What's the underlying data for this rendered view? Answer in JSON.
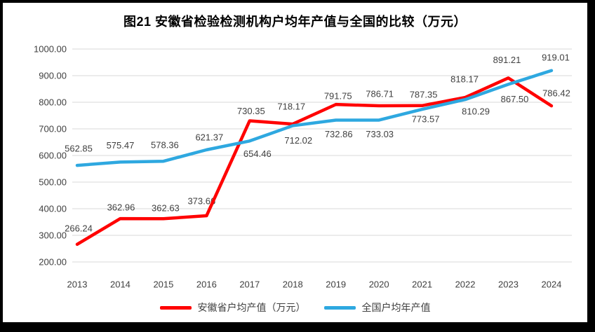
{
  "title": "图21 安徽省检验检测机构户均年产值与全国的比较（万元）",
  "colors": {
    "anhui_line": "#FF0000",
    "national_line": "#2EA8E0",
    "gridline": "#D9D9D9",
    "axis_text": "#404040",
    "label_text": "#404040",
    "frame_border": "#000000",
    "background": "#FFFFFF"
  },
  "chart_data": {
    "type": "line",
    "title": "图21 安徽省检验检测机构户均年产值与全国的比较（万元）",
    "categories": [
      "2013",
      "2014",
      "2015",
      "2016",
      "2017",
      "2018",
      "2019",
      "2020",
      "2021",
      "2022",
      "2023",
      "2024"
    ],
    "series": [
      {
        "id": "anhui",
        "name": "安徽省户均产值（万元）",
        "color": "#FF0000",
        "values": [
          266.24,
          362.96,
          362.63,
          373.66,
          730.35,
          718.17,
          791.75,
          786.71,
          787.35,
          818.17,
          891.21,
          786.42
        ],
        "labels": [
          "266.24",
          "362.96",
          "362.63",
          "373.66",
          "730.35",
          "718.17",
          "791.75",
          "786.71",
          "787.35",
          "818.17",
          "891.21",
          "786.42"
        ],
        "label_offsets": [
          [
            2,
            -23
          ],
          [
            1,
            -16
          ],
          [
            3,
            -15
          ],
          [
            -7,
            -21
          ],
          [
            2,
            -14
          ],
          [
            -2,
            -25
          ],
          [
            3,
            -12
          ],
          [
            1,
            -17
          ],
          [
            2,
            -16
          ],
          [
            -1,
            -26
          ],
          [
            -2,
            -26
          ],
          [
            7,
            -18
          ]
        ]
      },
      {
        "id": "national",
        "name": "全国户均年产值",
        "color": "#2EA8E0",
        "values": [
          562.85,
          575.47,
          578.36,
          621.37,
          654.46,
          712.02,
          732.86,
          733.03,
          773.57,
          810.29,
          867.5,
          919.01
        ],
        "labels": [
          "562.85",
          "575.47",
          "578.36",
          "621.37",
          "654.46",
          "712.02",
          "732.86",
          "733.03",
          "773.57",
          "810.29",
          "867.50",
          "919.01"
        ],
        "label_offsets": [
          [
            2,
            -24
          ],
          [
            0,
            -24
          ],
          [
            2,
            -23
          ],
          [
            4,
            -18
          ],
          [
            11,
            18
          ],
          [
            8,
            21
          ],
          [
            4,
            20
          ],
          [
            1,
            20
          ],
          [
            5,
            14
          ],
          [
            15,
            17
          ],
          [
            9,
            21
          ],
          [
            6,
            -19
          ]
        ]
      }
    ],
    "ylim": [
      200,
      1000
    ],
    "ytick_step": 100,
    "yticks": [
      "1000.00",
      "900.00",
      "800.00",
      "700.00",
      "600.00",
      "500.00",
      "400.00",
      "300.00",
      "200.00"
    ],
    "xlabel": "",
    "ylabel": "",
    "grid": true,
    "legend_position": "bottom",
    "data_labels": true
  }
}
